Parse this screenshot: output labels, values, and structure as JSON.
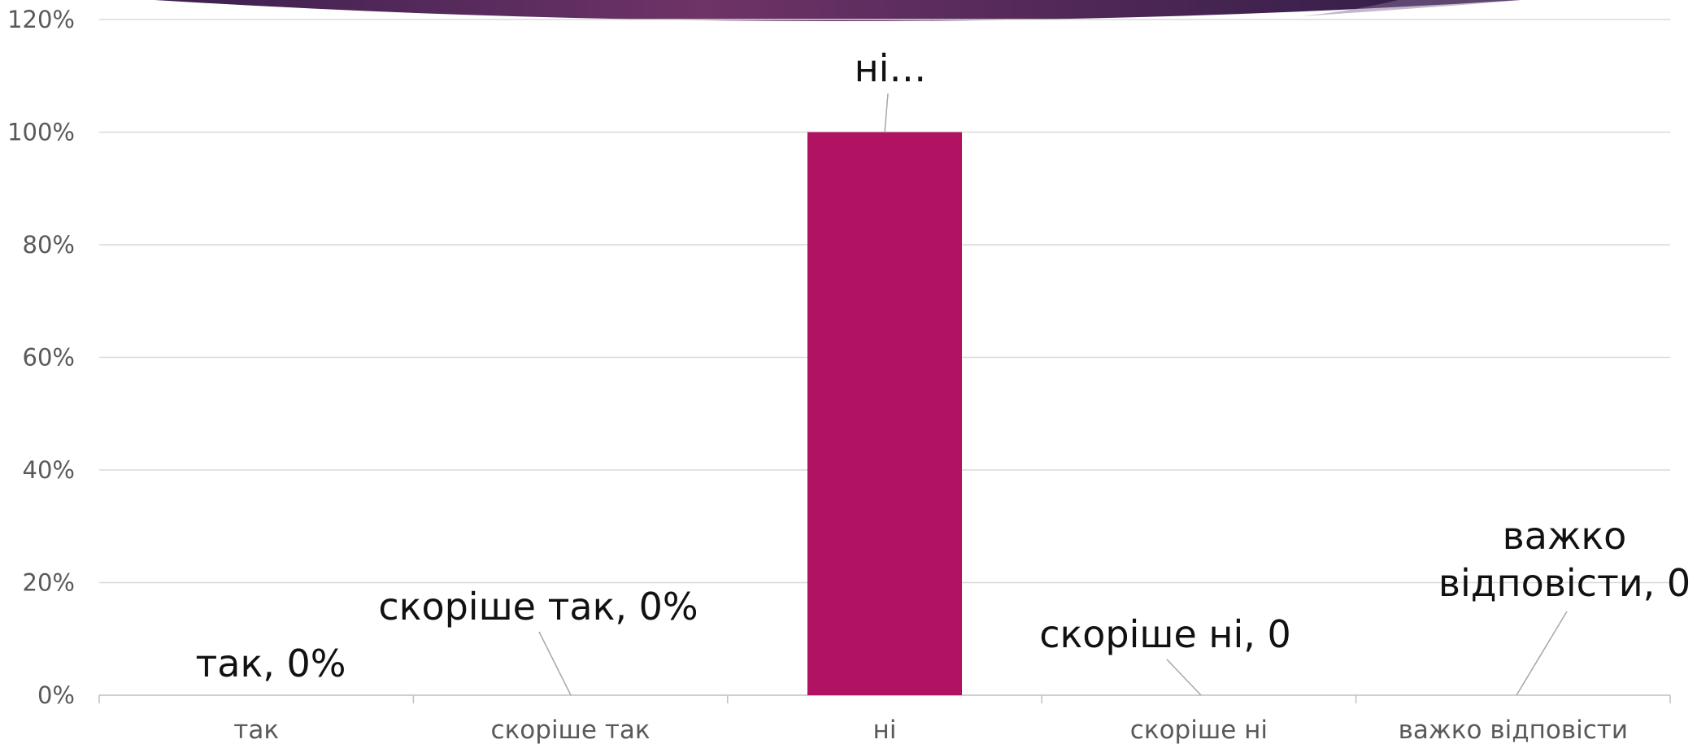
{
  "chart_data": {
    "type": "bar",
    "categories": [
      "так",
      "скоріше так",
      "ні",
      "скоріше ні",
      "важко відповісти"
    ],
    "values": [
      0,
      0,
      100,
      0,
      0
    ],
    "ylim": [
      0,
      120
    ],
    "yticks": [
      0,
      20,
      40,
      60,
      80,
      100,
      120
    ],
    "ytick_labels": [
      "0%",
      "20%",
      "40%",
      "60%",
      "80%",
      "100%",
      "120%"
    ],
    "data_labels": [
      [
        "так, 0%"
      ],
      [
        "скоріше так, 0%"
      ],
      [
        "ні…"
      ],
      [
        "скоріше ні, 0"
      ],
      [
        "важко",
        "відповісти, 0"
      ]
    ],
    "grid": true,
    "legend": "none",
    "bar_color": "#b11262",
    "grid_color": "#d9d9d9",
    "banner_colors": [
      "#3b1f4f",
      "#6e3367",
      "#2d1b45"
    ]
  }
}
